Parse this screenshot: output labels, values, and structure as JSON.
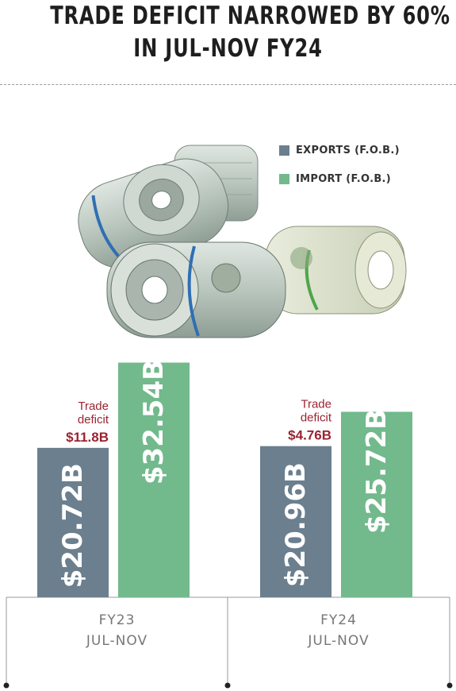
{
  "header": {
    "title_line1": "TRADE DEFICIT NARROWED BY 60%",
    "title_line2": "IN JUL-NOV FY24"
  },
  "legend": [
    {
      "label": "EXPORTS (F.O.B.)",
      "color": "#6b7f8e"
    },
    {
      "label": "IMPORT (F.O.B.)",
      "color": "#72b98c"
    }
  ],
  "chart_data": {
    "type": "bar",
    "categories": [
      "FY23\nJUL-NOV",
      "FY24\nJUL-NOV"
    ],
    "category_lines": [
      [
        "FY23",
        "JUL-NOV"
      ],
      [
        "FY24",
        "JUL-NOV"
      ]
    ],
    "series": [
      {
        "name": "EXPORTS (F.O.B.)",
        "values": [
          20.72,
          20.96
        ],
        "labels": [
          "$20.72B",
          "$20.96B"
        ],
        "color": "#6b7f8e"
      },
      {
        "name": "IMPORT (F.O.B.)",
        "values": [
          32.54,
          25.72
        ],
        "labels": [
          "$32.54B",
          "$25.72B"
        ],
        "color": "#72b98c"
      }
    ],
    "annotations": [
      {
        "caption_lines": [
          "Trade",
          "deficit"
        ],
        "value": "$11.8B",
        "color": "#9b2332"
      },
      {
        "caption_lines": [
          "Trade",
          "deficit"
        ],
        "value": "$4.76B",
        "color": "#9b2332"
      }
    ],
    "grid": false,
    "legend_position": "top-right"
  }
}
